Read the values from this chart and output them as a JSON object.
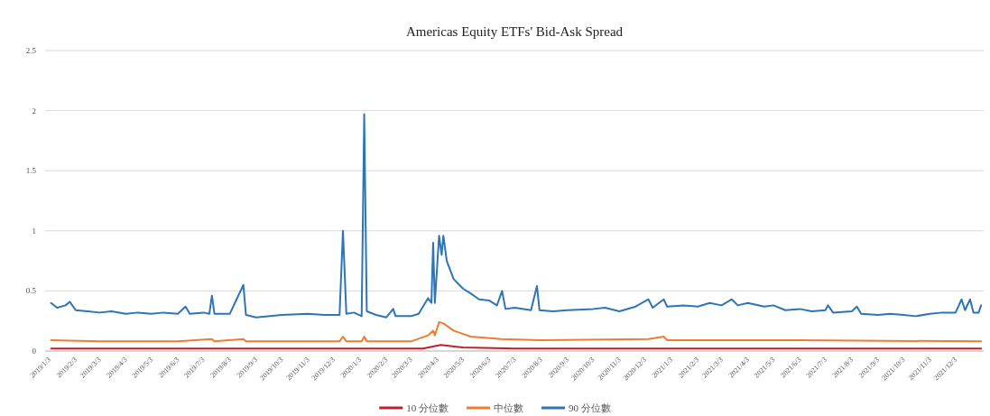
{
  "chart_data": {
    "type": "line",
    "title": "Americas Equity ETFs' Bid-Ask Spread",
    "legend": "bottom",
    "grid": "y",
    "ylim": [
      0,
      2.5
    ],
    "yticks": [
      0,
      0.5,
      1,
      1.5,
      2,
      2.5
    ],
    "xlim": [
      "2018-12-27",
      "2022-01-03"
    ],
    "xticks": [
      {
        "value": "2019-01-03",
        "label": "2019/1/3"
      },
      {
        "value": "2019-02-03",
        "label": "2019/2/3"
      },
      {
        "value": "2019-03-03",
        "label": "2019/3/3"
      },
      {
        "value": "2019-04-03",
        "label": "2019/4/3"
      },
      {
        "value": "2019-05-03",
        "label": "2019/5/3"
      },
      {
        "value": "2019-06-03",
        "label": "2019/6/3"
      },
      {
        "value": "2019-07-03",
        "label": "2019/7/3"
      },
      {
        "value": "2019-08-03",
        "label": "2019/8/3"
      },
      {
        "value": "2019-09-03",
        "label": "2019/9/3"
      },
      {
        "value": "2019-10-03",
        "label": "2019/10/3"
      },
      {
        "value": "2019-11-03",
        "label": "2019/11/3"
      },
      {
        "value": "2019-12-03",
        "label": "2019/12/3"
      },
      {
        "value": "2020-01-03",
        "label": "2020/1/3"
      },
      {
        "value": "2020-02-03",
        "label": "2020/2/3"
      },
      {
        "value": "2020-03-03",
        "label": "2020/3/3"
      },
      {
        "value": "2020-04-03",
        "label": "2020/4/3"
      },
      {
        "value": "2020-05-03",
        "label": "2020/5/3"
      },
      {
        "value": "2020-06-03",
        "label": "2020/6/3"
      },
      {
        "value": "2020-07-03",
        "label": "2020/7/3"
      },
      {
        "value": "2020-08-03",
        "label": "2020/8/3"
      },
      {
        "value": "2020-09-03",
        "label": "2020/9/3"
      },
      {
        "value": "2020-10-03",
        "label": "2020/10/3"
      },
      {
        "value": "2020-11-03",
        "label": "2020/11/3"
      },
      {
        "value": "2020-12-03",
        "label": "2020/12/3"
      },
      {
        "value": "2021-01-03",
        "label": "2021/1/3"
      },
      {
        "value": "2021-02-03",
        "label": "2021/2/3"
      },
      {
        "value": "2021-03-03",
        "label": "2021/3/3"
      },
      {
        "value": "2021-04-03",
        "label": "2021/4/3"
      },
      {
        "value": "2021-05-03",
        "label": "2021/5/3"
      },
      {
        "value": "2021-06-03",
        "label": "2021/6/3"
      },
      {
        "value": "2021-07-03",
        "label": "2021/7/3"
      },
      {
        "value": "2021-08-03",
        "label": "2021/8/3"
      },
      {
        "value": "2021-09-03",
        "label": "2021/9/3"
      },
      {
        "value": "2021-10-03",
        "label": "2021/10/3"
      },
      {
        "value": "2021-11-03",
        "label": "2021/11/3"
      },
      {
        "value": "2021-12-03",
        "label": "2021/12/3"
      }
    ],
    "series": [
      {
        "name": "10 分位數",
        "color": "#c0202a",
        "x": [
          "2019-01-03",
          "2020-03-15",
          "2020-04-05",
          "2020-05-01",
          "2020-07-01",
          "2021-12-31"
        ],
        "values": [
          0.02,
          0.02,
          0.05,
          0.03,
          0.02,
          0.02
        ]
      },
      {
        "name": "中位數",
        "color": "#ed7d31",
        "x": [
          "2019-01-03",
          "2019-03-01",
          "2019-06-01",
          "2019-07-11",
          "2019-07-14",
          "2019-08-17",
          "2019-08-20",
          "2019-11-01",
          "2019-12-08",
          "2019-12-12",
          "2019-12-16",
          "2020-01-03",
          "2020-01-06",
          "2020-01-09",
          "2020-03-01",
          "2020-03-21",
          "2020-03-27",
          "2020-03-29",
          "2020-04-03",
          "2020-04-08",
          "2020-04-20",
          "2020-05-10",
          "2020-06-15",
          "2020-08-01",
          "2020-12-05",
          "2020-12-23",
          "2020-12-27",
          "2021-06-01",
          "2021-12-31"
        ],
        "values": [
          0.09,
          0.08,
          0.08,
          0.1,
          0.08,
          0.1,
          0.08,
          0.08,
          0.08,
          0.12,
          0.08,
          0.08,
          0.12,
          0.08,
          0.08,
          0.13,
          0.17,
          0.13,
          0.24,
          0.23,
          0.17,
          0.12,
          0.1,
          0.09,
          0.1,
          0.12,
          0.09,
          0.09,
          0.08
        ]
      },
      {
        "name": "90 分位數",
        "color": "#2e75b6",
        "x": [
          "2019-01-03",
          "2019-01-10",
          "2019-01-20",
          "2019-01-25",
          "2019-02-01",
          "2019-02-15",
          "2019-03-01",
          "2019-03-15",
          "2019-04-01",
          "2019-04-15",
          "2019-05-01",
          "2019-05-15",
          "2019-06-01",
          "2019-06-10",
          "2019-06-15",
          "2019-07-01",
          "2019-07-08",
          "2019-07-11",
          "2019-07-14",
          "2019-08-01",
          "2019-08-17",
          "2019-08-20",
          "2019-09-01",
          "2019-10-01",
          "2019-11-01",
          "2019-11-20",
          "2019-12-08",
          "2019-12-12",
          "2019-12-16",
          "2019-12-25",
          "2020-01-03",
          "2020-01-06",
          "2020-01-09",
          "2020-01-20",
          "2020-02-01",
          "2020-02-09",
          "2020-02-12",
          "2020-03-01",
          "2020-03-10",
          "2020-03-21",
          "2020-03-25",
          "2020-03-27",
          "2020-03-29",
          "2020-04-03",
          "2020-04-06",
          "2020-04-08",
          "2020-04-12",
          "2020-04-20",
          "2020-05-01",
          "2020-05-10",
          "2020-05-20",
          "2020-06-01",
          "2020-06-10",
          "2020-06-16",
          "2020-06-20",
          "2020-07-01",
          "2020-07-20",
          "2020-07-27",
          "2020-07-30",
          "2020-08-15",
          "2020-09-01",
          "2020-10-01",
          "2020-10-15",
          "2020-11-01",
          "2020-11-20",
          "2020-12-05",
          "2020-12-10",
          "2020-12-23",
          "2020-12-27",
          "2021-01-15",
          "2021-02-01",
          "2021-02-15",
          "2021-03-01",
          "2021-03-13",
          "2021-03-20",
          "2021-04-01",
          "2021-04-20",
          "2021-05-01",
          "2021-05-15",
          "2021-06-01",
          "2021-06-15",
          "2021-07-01",
          "2021-07-04",
          "2021-07-10",
          "2021-08-01",
          "2021-08-07",
          "2021-08-12",
          "2021-09-01",
          "2021-09-15",
          "2021-10-01",
          "2021-10-15",
          "2021-11-01",
          "2021-11-15",
          "2021-12-01",
          "2021-12-08",
          "2021-12-12",
          "2021-12-18",
          "2021-12-22",
          "2021-12-28",
          "2021-12-31"
        ],
        "values": [
          0.4,
          0.36,
          0.38,
          0.41,
          0.34,
          0.33,
          0.32,
          0.33,
          0.31,
          0.32,
          0.31,
          0.32,
          0.31,
          0.37,
          0.31,
          0.32,
          0.31,
          0.46,
          0.31,
          0.31,
          0.55,
          0.3,
          0.28,
          0.3,
          0.31,
          0.3,
          0.3,
          1.0,
          0.31,
          0.32,
          0.29,
          1.97,
          0.33,
          0.3,
          0.28,
          0.35,
          0.29,
          0.29,
          0.31,
          0.44,
          0.4,
          0.9,
          0.4,
          0.96,
          0.8,
          0.96,
          0.75,
          0.6,
          0.52,
          0.48,
          0.43,
          0.42,
          0.38,
          0.5,
          0.35,
          0.36,
          0.34,
          0.54,
          0.34,
          0.33,
          0.34,
          0.35,
          0.36,
          0.33,
          0.37,
          0.43,
          0.36,
          0.43,
          0.37,
          0.38,
          0.37,
          0.4,
          0.38,
          0.43,
          0.38,
          0.4,
          0.37,
          0.38,
          0.34,
          0.35,
          0.33,
          0.34,
          0.38,
          0.32,
          0.33,
          0.37,
          0.31,
          0.3,
          0.31,
          0.3,
          0.29,
          0.31,
          0.32,
          0.32,
          0.43,
          0.34,
          0.43,
          0.32,
          0.32,
          0.38
        ]
      }
    ]
  }
}
